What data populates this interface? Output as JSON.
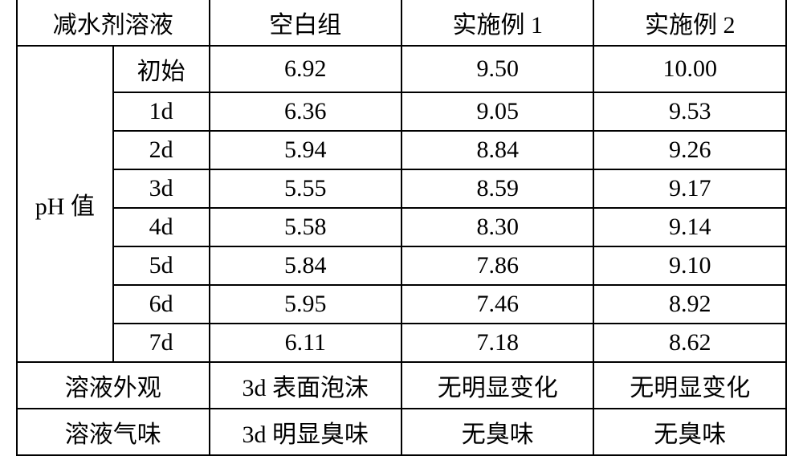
{
  "table": {
    "type": "table",
    "background_color": "#ffffff",
    "border_color": "#000000",
    "text_color": "#000000",
    "font_size": 30,
    "header": {
      "col0": "减水剂溶液",
      "col1": "空白组",
      "col2": "实施例 1",
      "col3": "实施例 2"
    },
    "ph_section": {
      "label": "pH 值",
      "rows": [
        {
          "stage": "初始",
          "blank": "6.92",
          "ex1": "9.50",
          "ex2": "10.00"
        },
        {
          "stage": "1d",
          "blank": "6.36",
          "ex1": "9.05",
          "ex2": "9.53"
        },
        {
          "stage": "2d",
          "blank": "5.94",
          "ex1": "8.84",
          "ex2": "9.26"
        },
        {
          "stage": "3d",
          "blank": "5.55",
          "ex1": "8.59",
          "ex2": "9.17"
        },
        {
          "stage": "4d",
          "blank": "5.58",
          "ex1": "8.30",
          "ex2": "9.14"
        },
        {
          "stage": "5d",
          "blank": "5.84",
          "ex1": "7.86",
          "ex2": "9.10"
        },
        {
          "stage": "6d",
          "blank": "5.95",
          "ex1": "7.46",
          "ex2": "8.92"
        },
        {
          "stage": "7d",
          "blank": "6.11",
          "ex1": "7.18",
          "ex2": "8.62"
        }
      ]
    },
    "appearance": {
      "label": "溶液外观",
      "blank": "3d 表面泡沫",
      "ex1": "无明显变化",
      "ex2": "无明显变化"
    },
    "odor": {
      "label": "溶液气味",
      "blank": "3d 明显臭味",
      "ex1": "无臭味",
      "ex2": "无臭味"
    }
  }
}
